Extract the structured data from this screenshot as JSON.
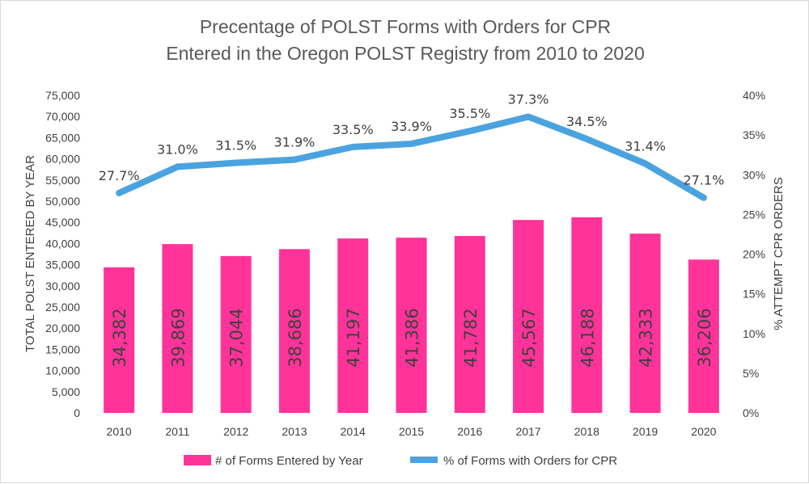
{
  "chart_data": {
    "type": "bar+line",
    "title_lines": [
      "Precentage of POLST Forms with Orders for CPR",
      "Entered in the Oregon POLST Registry from 2010 to 2020"
    ],
    "categories": [
      "2010",
      "2011",
      "2012",
      "2013",
      "2014",
      "2015",
      "2016",
      "2017",
      "2018",
      "2019",
      "2020"
    ],
    "series": [
      {
        "name": "# of Forms Entered by Year",
        "type": "bar",
        "axis": "left",
        "color": "#ff3399",
        "values": [
          34382,
          39869,
          37044,
          38686,
          41197,
          41386,
          41782,
          45567,
          46188,
          42333,
          36206
        ],
        "labels": [
          "34,382",
          "39,869",
          "37,044",
          "38,686",
          "41,197",
          "41,386",
          "41,782",
          "45,567",
          "46,188",
          "42,333",
          "36,206"
        ]
      },
      {
        "name": "% of Forms with Orders for CPR",
        "type": "line",
        "axis": "right",
        "color": "#4aa3df",
        "values": [
          27.7,
          31.0,
          31.5,
          31.9,
          33.5,
          33.9,
          35.5,
          37.3,
          34.5,
          31.4,
          27.1
        ],
        "labels": [
          "27.7%",
          "31.0%",
          "31.5%",
          "31.9%",
          "33.5%",
          "33.9%",
          "35.5%",
          "37.3%",
          "34.5%",
          "31.4%",
          "27.1%"
        ]
      }
    ],
    "ylabel_left": "TOTAL POLST  ENTERED BY YEAR",
    "ylabel_right": "% ATTEMPT CPR ORDERS",
    "ylim_left": [
      0,
      75000
    ],
    "ylim_right": [
      0,
      40
    ],
    "yticks_left": [
      "0",
      "5,000",
      "10,000",
      "15,000",
      "20,000",
      "25,000",
      "30,000",
      "35,000",
      "40,000",
      "45,000",
      "50,000",
      "55,000",
      "60,000",
      "65,000",
      "70,000",
      "75,000"
    ],
    "yticks_right": [
      "0%",
      "5%",
      "10%",
      "15%",
      "20%",
      "25%",
      "30%",
      "35%",
      "40%"
    ],
    "grid": false,
    "legend_position": "bottom"
  }
}
